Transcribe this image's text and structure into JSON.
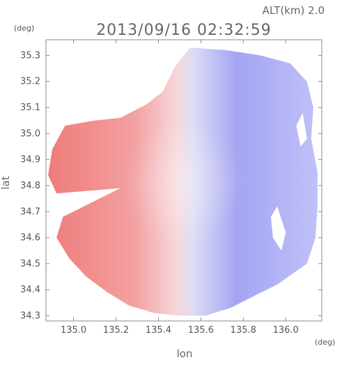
{
  "header": {
    "altitude_label": "ALT(km) 2.0",
    "datetime": "2013/09/16 02:32:59"
  },
  "chart_data": {
    "type": "heatmap",
    "title": "2013/09/16 02:32:59",
    "subtitle": "ALT(km) 2.0",
    "xlabel": "lon",
    "ylabel": "lat",
    "x_unit": "(deg)",
    "y_unit": "(deg)",
    "xlim": [
      134.87,
      136.17
    ],
    "ylim": [
      34.28,
      35.36
    ],
    "x_ticks": [
      135.0,
      135.2,
      135.4,
      135.6,
      135.8,
      136.0
    ],
    "x_tick_labels": [
      "135.0",
      "135.2",
      "135.4",
      "135.6",
      "135.8",
      "136.0"
    ],
    "y_ticks": [
      34.3,
      34.4,
      34.5,
      34.6,
      34.7,
      34.8,
      34.9,
      35.0,
      35.1,
      35.2,
      35.3
    ],
    "y_tick_labels": [
      "34.3",
      "34.4",
      "34.5",
      "34.6",
      "34.7",
      "34.8",
      "34.9",
      "35.0",
      "35.1",
      "35.2",
      "35.3"
    ],
    "radar_center": {
      "lon": 135.52,
      "lat": 34.81
    },
    "grid": false,
    "colors": {
      "toward_west": "#f08a8a",
      "toward_east": "#8a8af0",
      "near_zero": "#f4f0f6",
      "axes": "#8a8a8a"
    },
    "regions": [
      {
        "name": "west (red) sector",
        "lon_range": [
          134.88,
          135.52
        ],
        "lat_range": [
          34.37,
          35.06
        ]
      },
      {
        "name": "east (blue) sector",
        "lon_range": [
          135.52,
          136.15
        ],
        "lat_range": [
          34.3,
          35.33
        ]
      }
    ]
  }
}
